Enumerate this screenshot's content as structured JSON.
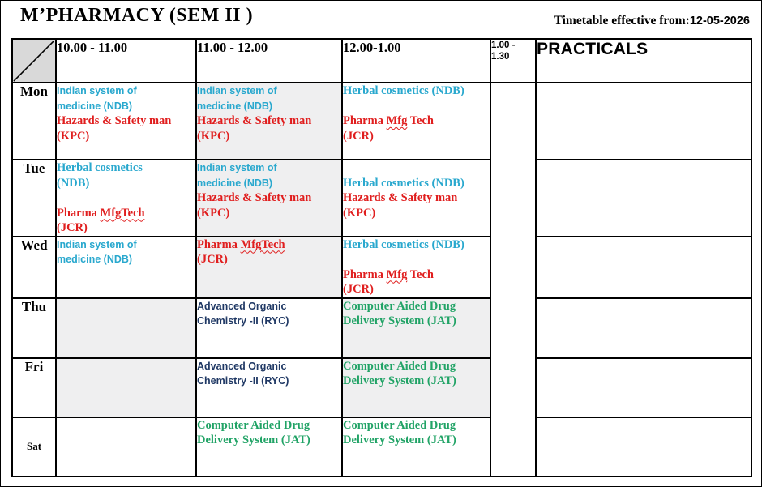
{
  "title": "M’PHARMACY (SEM II )",
  "effective_label": "Timetable effective from:",
  "effective_date": "12-05-2026",
  "headers": {
    "time1": "10.00 - 11.00",
    "time2": "11.00 - 12.00",
    "time3": "12.00-1.00",
    "lunch1": "1.00 -",
    "lunch2": "1.30",
    "practicals": "PRACTICALS"
  },
  "colors": {
    "cyan": "#29a8ce",
    "red": "#e01e1e",
    "navy": "#1f3864",
    "green": "#21a366",
    "cell_gray": "#efeff0",
    "corner_gray": "#d9d9d9",
    "border": "#000000"
  },
  "days": [
    {
      "day": "Mon",
      "small": false,
      "cells": [
        {
          "bg": "white",
          "valign": "top",
          "lines": [
            {
              "style": "cyan-sans",
              "parts": [
                {
                  "t": "Indian system of"
                }
              ]
            },
            {
              "style": "cyan-sans",
              "parts": [
                {
                  "t": "medicine (NDB)"
                }
              ]
            },
            {
              "style": "red-serif",
              "parts": [
                {
                  "t": "Hazards & Safety man"
                }
              ]
            },
            {
              "style": "red-serif",
              "parts": [
                {
                  "t": "(KPC)"
                }
              ]
            }
          ]
        },
        {
          "bg": "gray",
          "valign": "top",
          "lines": [
            {
              "style": "cyan-sans",
              "parts": [
                {
                  "t": "Indian system of"
                }
              ]
            },
            {
              "style": "cyan-sans",
              "parts": [
                {
                  "t": "medicine (NDB)"
                }
              ]
            },
            {
              "style": "red-serif",
              "parts": [
                {
                  "t": "Hazards & Safety man"
                }
              ]
            },
            {
              "style": "red-serif",
              "parts": [
                {
                  "t": "(KPC)"
                }
              ]
            }
          ]
        },
        {
          "bg": "white",
          "valign": "top",
          "lines": [
            {
              "style": "cyan-serif",
              "parts": [
                {
                  "t": "Herbal cosmetics (NDB)"
                }
              ]
            },
            {
              "blank": true
            },
            {
              "style": "red-serif",
              "parts": [
                {
                  "t": "Pharma "
                },
                {
                  "t": "Mfg",
                  "wavy": true
                },
                {
                  "t": " Tech"
                }
              ]
            },
            {
              "style": "red-serif",
              "parts": [
                {
                  "t": "(JCR)"
                }
              ]
            }
          ]
        }
      ]
    },
    {
      "day": "Tue",
      "small": false,
      "cells": [
        {
          "bg": "white",
          "valign": "top",
          "lines": [
            {
              "style": "cyan-serif",
              "parts": [
                {
                  "t": "Herbal cosmetics"
                }
              ]
            },
            {
              "style": "cyan-serif",
              "parts": [
                {
                  "t": "(NDB)"
                }
              ]
            },
            {
              "blank": true
            },
            {
              "style": "red-serif",
              "parts": [
                {
                  "t": "Pharma "
                },
                {
                  "t": "MfgTech",
                  "wavy": true
                }
              ]
            },
            {
              "style": "red-serif",
              "parts": [
                {
                  "t": "(JCR)"
                }
              ]
            }
          ]
        },
        {
          "bg": "gray",
          "valign": "top",
          "lines": [
            {
              "style": "cyan-sans",
              "parts": [
                {
                  "t": "Indian system of"
                }
              ]
            },
            {
              "style": "cyan-sans",
              "parts": [
                {
                  "t": "medicine (NDB)"
                }
              ]
            },
            {
              "style": "red-serif",
              "parts": [
                {
                  "t": "Hazards & Safety man"
                }
              ]
            },
            {
              "style": "red-serif",
              "parts": [
                {
                  "t": "(KPC)"
                }
              ]
            }
          ]
        },
        {
          "bg": "white",
          "valign": "middle",
          "lines": [
            {
              "style": "cyan-serif",
              "parts": [
                {
                  "t": "Herbal cosmetics (NDB)"
                }
              ]
            },
            {
              "style": "red-serif",
              "parts": [
                {
                  "t": "Hazards & Safety man"
                }
              ]
            },
            {
              "style": "red-serif",
              "parts": [
                {
                  "t": "(KPC)"
                }
              ]
            }
          ]
        }
      ]
    },
    {
      "day": "Wed",
      "small": false,
      "cells": [
        {
          "bg": "white",
          "valign": "top",
          "lines": [
            {
              "style": "cyan-sans",
              "parts": [
                {
                  "t": "Indian system of"
                }
              ]
            },
            {
              "style": "cyan-sans",
              "parts": [
                {
                  "t": "medicine (NDB)"
                }
              ]
            }
          ]
        },
        {
          "bg": "gray",
          "valign": "top",
          "lines": [
            {
              "style": "red-serif",
              "parts": [
                {
                  "t": "Pharma "
                },
                {
                  "t": "MfgTech",
                  "wavy": true
                }
              ]
            },
            {
              "style": "red-serif",
              "parts": [
                {
                  "t": "(JCR)"
                }
              ]
            }
          ]
        },
        {
          "bg": "white",
          "valign": "top",
          "lines": [
            {
              "style": "cyan-serif",
              "parts": [
                {
                  "t": "Herbal cosmetics (NDB)"
                }
              ]
            },
            {
              "blank": true
            },
            {
              "style": "red-serif",
              "parts": [
                {
                  "t": "Pharma "
                },
                {
                  "t": "Mfg",
                  "wavy": true
                },
                {
                  "t": " Tech"
                }
              ]
            },
            {
              "style": "red-serif",
              "parts": [
                {
                  "t": "(JCR)"
                }
              ]
            }
          ]
        }
      ]
    },
    {
      "day": "Thu",
      "small": false,
      "cells": [
        {
          "bg": "gray",
          "valign": "top",
          "lines": []
        },
        {
          "bg": "white",
          "valign": "top",
          "lines": [
            {
              "style": "navy-sans",
              "parts": [
                {
                  "t": "Advanced Organic"
                }
              ]
            },
            {
              "style": "navy-sans",
              "parts": [
                {
                  "t": "Chemistry -II (RYC)"
                }
              ]
            }
          ]
        },
        {
          "bg": "gray",
          "valign": "top",
          "lines": [
            {
              "style": "green-serif",
              "parts": [
                {
                  "t": "Computer Aided Drug"
                }
              ]
            },
            {
              "style": "green-serif",
              "parts": [
                {
                  "t": "Delivery System (JAT)"
                }
              ]
            }
          ]
        }
      ]
    },
    {
      "day": "Fri",
      "small": false,
      "cells": [
        {
          "bg": "gray",
          "valign": "top",
          "lines": []
        },
        {
          "bg": "white",
          "valign": "top",
          "lines": [
            {
              "style": "navy-sans",
              "parts": [
                {
                  "t": "Advanced Organic"
                }
              ]
            },
            {
              "style": "navy-sans",
              "parts": [
                {
                  "t": "Chemistry -II (RYC)"
                }
              ]
            }
          ]
        },
        {
          "bg": "gray",
          "valign": "top",
          "lines": [
            {
              "style": "green-serif",
              "parts": [
                {
                  "t": "Computer Aided Drug"
                }
              ]
            },
            {
              "style": "green-serif",
              "parts": [
                {
                  "t": "Delivery System (JAT)"
                }
              ]
            }
          ]
        }
      ]
    },
    {
      "day": "Sat",
      "small": true,
      "cells": [
        {
          "bg": "white",
          "valign": "top",
          "lines": []
        },
        {
          "bg": "white",
          "valign": "top",
          "lines": [
            {
              "style": "green-serif",
              "parts": [
                {
                  "t": "Computer Aided Drug"
                }
              ]
            },
            {
              "style": "green-serif",
              "parts": [
                {
                  "t": "Delivery System (JAT)"
                }
              ]
            }
          ]
        },
        {
          "bg": "white",
          "valign": "top",
          "lines": [
            {
              "style": "green-serif",
              "parts": [
                {
                  "t": "Computer Aided Drug"
                }
              ]
            },
            {
              "style": "green-serif",
              "parts": [
                {
                  "t": "Delivery System (JAT)"
                }
              ]
            }
          ]
        }
      ]
    }
  ]
}
